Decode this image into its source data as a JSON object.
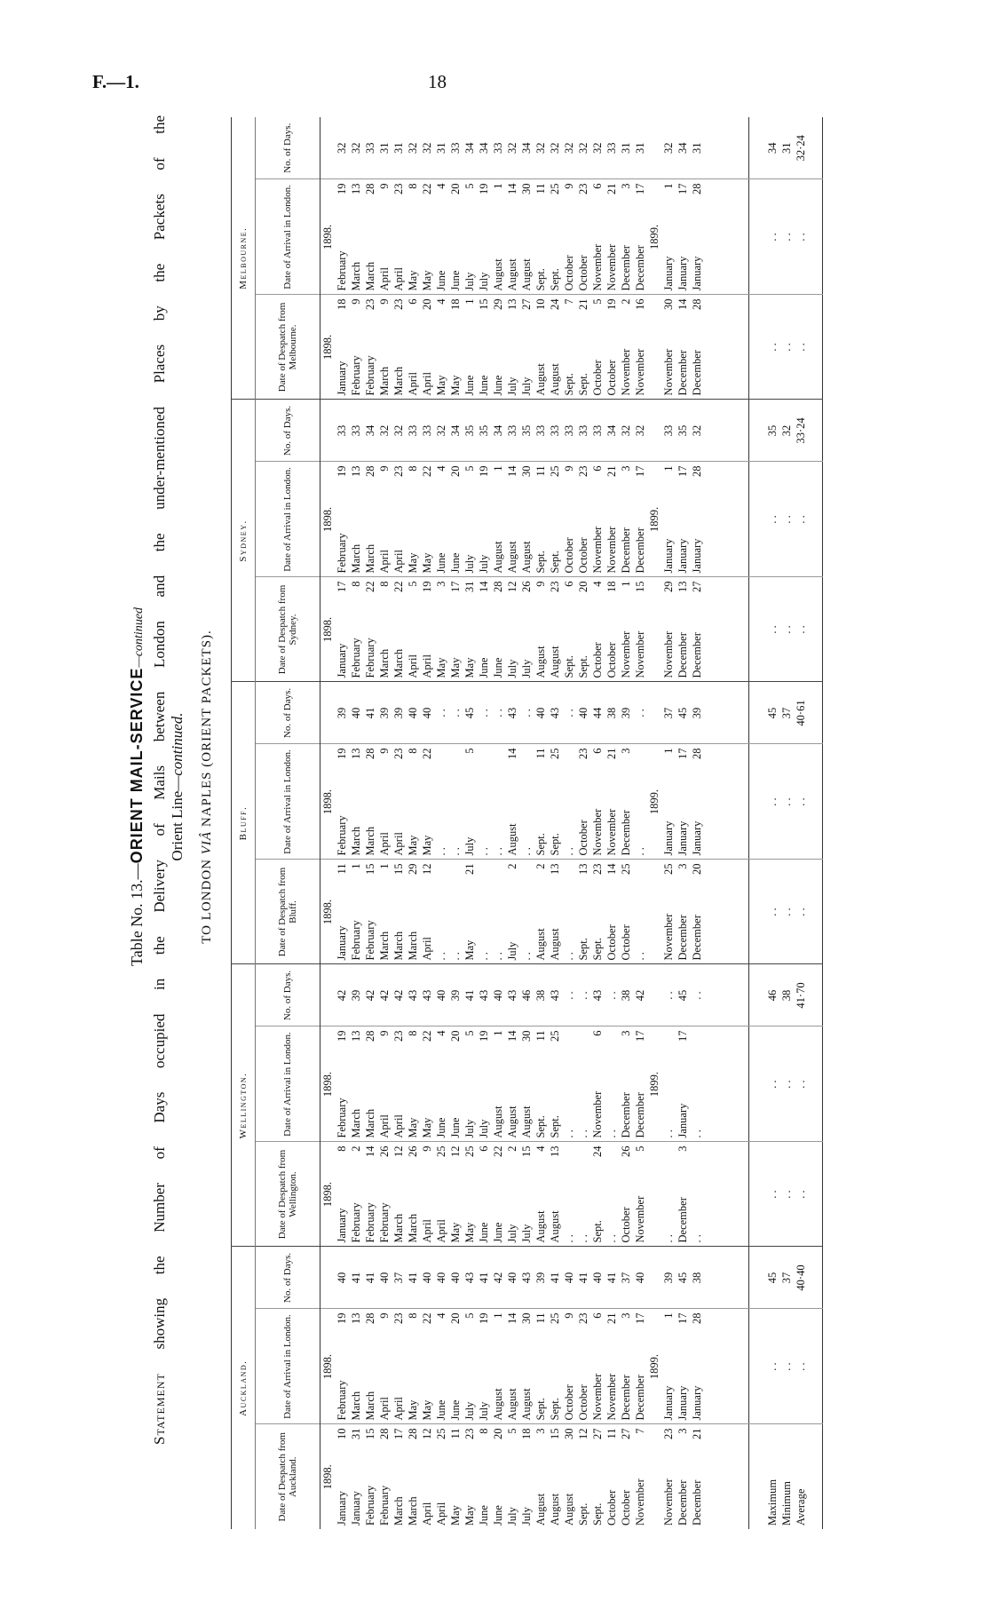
{
  "page": {
    "id": "F.—1.",
    "number": "18"
  },
  "title": {
    "prefix": "Table No. 13.—",
    "bold": "ORIENT MAIL-SERVICE",
    "suffix": "—continued"
  },
  "statement": {
    "lead": "Statement",
    "line1": "showing the Number of Days occupied in the Delivery of Mails between London and the under-mentioned Places by the Packets of the",
    "line2": "Orient Line—",
    "line2_italic": "continued."
  },
  "subtitle": {
    "prefix": "TO LONDON ",
    "italic": "VIÂ",
    "suffix": " NAPLES (ORIENT PACKETS)."
  },
  "table": {
    "summary_labels": [
      "Maximum",
      "Minimum",
      "Average"
    ],
    "dots": ". .",
    "sections": [
      {
        "name": "Auckland.",
        "headers": [
          "Date of Despatch from Auckland.",
          "Date of Arrival in London.",
          "No. of Days."
        ],
        "despatch_year": "1898.",
        "arrival_year": "1898.",
        "arrival_year_next": "1899.",
        "rows_1898": [
          [
            "January",
            "10",
            "February",
            "19",
            "40"
          ],
          [
            "January",
            "31",
            "March",
            "13",
            "41"
          ],
          [
            "February",
            "15",
            "March",
            "28",
            "41"
          ],
          [
            "February",
            "28",
            "April",
            "9",
            "40"
          ],
          [
            "March",
            "17",
            "April",
            "23",
            "37"
          ],
          [
            "March",
            "28",
            "May",
            "8",
            "41"
          ],
          [
            "April",
            "12",
            "May",
            "22",
            "40"
          ],
          [
            "April",
            "25",
            "June",
            "4",
            "40"
          ],
          [
            "May",
            "11",
            "June",
            "20",
            "40"
          ],
          [
            "May",
            "23",
            "July",
            "5",
            "43"
          ],
          [
            "June",
            "8",
            "July",
            "19",
            "41"
          ],
          [
            "June",
            "20",
            "August",
            "1",
            "42"
          ],
          [
            "July",
            "5",
            "August",
            "14",
            "40"
          ],
          [
            "July",
            "18",
            "August",
            "30",
            "43"
          ],
          [
            "August",
            "3",
            "Sept.",
            "11",
            "39"
          ],
          [
            "August",
            "15",
            "Sept.",
            "25",
            "41"
          ],
          [
            "August",
            "30",
            "October",
            "9",
            "40"
          ],
          [
            "Sept.",
            "12",
            "October",
            "23",
            "41"
          ],
          [
            "Sept.",
            "27",
            "November",
            "6",
            "40"
          ],
          [
            "October",
            "11",
            "November",
            "21",
            "41"
          ],
          [
            "October",
            "27",
            "December",
            "3",
            "37"
          ],
          [
            "November",
            "7",
            "December",
            "17",
            "40"
          ]
        ],
        "rows_1899": [
          [
            "November",
            "23",
            "January",
            "1",
            "39"
          ],
          [
            "December",
            "3",
            "January",
            "17",
            "45"
          ],
          [
            "December",
            "21",
            "January",
            "28",
            "38"
          ]
        ],
        "summary": [
          "45",
          "37",
          "40·40"
        ]
      },
      {
        "name": "Wellington.",
        "headers": [
          "Date of Despatch from Wellington.",
          "Date of Arrival in London.",
          "No. of Days."
        ],
        "despatch_year": "1898.",
        "arrival_year": "1898.",
        "arrival_year_next": "1899.",
        "rows_1898": [
          [
            "January",
            "8",
            "February",
            "19",
            "42"
          ],
          [
            "February",
            "2",
            "March",
            "13",
            "39"
          ],
          [
            "February",
            "14",
            "March",
            "28",
            "42"
          ],
          [
            "February",
            "26",
            "April",
            "9",
            "42"
          ],
          [
            "March",
            "12",
            "April",
            "23",
            "42"
          ],
          [
            "March",
            "26",
            "May",
            "8",
            "43"
          ],
          [
            "April",
            "9",
            "May",
            "22",
            "43"
          ],
          [
            "April",
            "25",
            "June",
            "4",
            "40"
          ],
          [
            "May",
            "12",
            "June",
            "20",
            "39"
          ],
          [
            "May",
            "25",
            "July",
            "5",
            "41"
          ],
          [
            "June",
            "6",
            "July",
            "19",
            "43"
          ],
          [
            "June",
            "22",
            "August",
            "1",
            "40"
          ],
          [
            "July",
            "2",
            "August",
            "14",
            "43"
          ],
          [
            "July",
            "15",
            "August",
            "30",
            "46"
          ],
          [
            "August",
            "4",
            "Sept.",
            "11",
            "38"
          ],
          [
            "August",
            "13",
            "Sept.",
            "25",
            "43"
          ],
          [
            ". .",
            "",
            ". .",
            "",
            ". ."
          ],
          [
            ". .",
            "",
            ". .",
            "",
            ". ."
          ],
          [
            "Sept.",
            "24",
            "November",
            "6",
            "43"
          ],
          [
            ". .",
            "",
            ". .",
            "",
            ". ."
          ],
          [
            "October",
            "26",
            "December",
            "3",
            "38"
          ],
          [
            "November",
            "5",
            "December",
            "17",
            "42"
          ]
        ],
        "rows_1899": [
          [
            ". .",
            "",
            ". .",
            "",
            ". ."
          ],
          [
            "December",
            "3",
            "January",
            "17",
            "45"
          ],
          [
            ". .",
            "",
            ". .",
            "",
            ". ."
          ]
        ],
        "summary": [
          "46",
          "38",
          "41·70"
        ]
      },
      {
        "name": "Bluff.",
        "headers": [
          "Date of Despatch from Bluff.",
          "Date of Arrival in London.",
          "No. of Days."
        ],
        "despatch_year": "1898.",
        "arrival_year": "1898.",
        "arrival_year_next": "1899.",
        "rows_1898": [
          [
            "January",
            "11",
            "February",
            "19",
            "39"
          ],
          [
            "February",
            "1",
            "March",
            "13",
            "40"
          ],
          [
            "February",
            "15",
            "March",
            "28",
            "41"
          ],
          [
            "March",
            "1",
            "April",
            "9",
            "39"
          ],
          [
            "March",
            "15",
            "April",
            "23",
            "39"
          ],
          [
            "March",
            "29",
            "May",
            "8",
            "40"
          ],
          [
            "April",
            "12",
            "May",
            "22",
            "40"
          ],
          [
            ". .",
            "",
            ". .",
            "",
            ". ."
          ],
          [
            ". .",
            "",
            ". .",
            "",
            ". ."
          ],
          [
            "May",
            "21",
            "July",
            "5",
            "45"
          ],
          [
            ". .",
            "",
            ". .",
            "",
            ". ."
          ],
          [
            ". .",
            "",
            ". .",
            "",
            ". ."
          ],
          [
            "July",
            "2",
            "August",
            "14",
            "43"
          ],
          [
            ". .",
            "",
            ". .",
            "",
            ". ."
          ],
          [
            "August",
            "2",
            "Sept.",
            "11",
            "40"
          ],
          [
            "August",
            "13",
            "Sept.",
            "25",
            "43"
          ],
          [
            ". .",
            "",
            ". .",
            "",
            ". ."
          ],
          [
            "Sept.",
            "13",
            "October",
            "23",
            "40"
          ],
          [
            "Sept.",
            "23",
            "November",
            "6",
            "44"
          ],
          [
            "October",
            "14",
            "November",
            "21",
            "38"
          ],
          [
            "October",
            "25",
            "December",
            "3",
            "39"
          ],
          [
            ". .",
            "",
            ". .",
            "",
            ". ."
          ]
        ],
        "rows_1899": [
          [
            "November",
            "25",
            "January",
            "1",
            "37"
          ],
          [
            "December",
            "3",
            "January",
            "17",
            "45"
          ],
          [
            "December",
            "20",
            "January",
            "28",
            "39"
          ]
        ],
        "summary": [
          "45",
          "37",
          "40·61"
        ]
      },
      {
        "name": "Sydney.",
        "headers": [
          "Date of Despatch from Sydney.",
          "Date of Arrival in London.",
          "No. of Days."
        ],
        "despatch_year": "1898.",
        "arrival_year": "1898.",
        "arrival_year_next": "1899.",
        "rows_1898": [
          [
            "January",
            "17",
            "February",
            "19",
            "33"
          ],
          [
            "February",
            "8",
            "March",
            "13",
            "33"
          ],
          [
            "February",
            "22",
            "March",
            "28",
            "34"
          ],
          [
            "March",
            "8",
            "April",
            "9",
            "32"
          ],
          [
            "March",
            "22",
            "April",
            "23",
            "32"
          ],
          [
            "April",
            "5",
            "May",
            "8",
            "33"
          ],
          [
            "April",
            "19",
            "May",
            "22",
            "33"
          ],
          [
            "May",
            "3",
            "June",
            "4",
            "32"
          ],
          [
            "May",
            "17",
            "June",
            "20",
            "34"
          ],
          [
            "May",
            "31",
            "July",
            "5",
            "35"
          ],
          [
            "June",
            "14",
            "July",
            "19",
            "35"
          ],
          [
            "June",
            "28",
            "August",
            "1",
            "34"
          ],
          [
            "July",
            "12",
            "August",
            "14",
            "33"
          ],
          [
            "July",
            "26",
            "August",
            "30",
            "35"
          ],
          [
            "August",
            "9",
            "Sept.",
            "11",
            "33"
          ],
          [
            "August",
            "23",
            "Sept.",
            "25",
            "33"
          ],
          [
            "Sept.",
            "6",
            "October",
            "9",
            "33"
          ],
          [
            "Sept.",
            "20",
            "October",
            "23",
            "33"
          ],
          [
            "October",
            "4",
            "November",
            "6",
            "33"
          ],
          [
            "October",
            "18",
            "November",
            "21",
            "34"
          ],
          [
            "November",
            "1",
            "December",
            "3",
            "32"
          ],
          [
            "November",
            "15",
            "December",
            "17",
            "32"
          ]
        ],
        "rows_1899": [
          [
            "November",
            "29",
            "January",
            "1",
            "33"
          ],
          [
            "December",
            "13",
            "January",
            "17",
            "35"
          ],
          [
            "December",
            "27",
            "January",
            "28",
            "32"
          ]
        ],
        "summary": [
          "35",
          "32",
          "33·24"
        ]
      },
      {
        "name": "Melbourne.",
        "headers": [
          "Date of Despatch from Melbourne.",
          "Date of Arrival in London.",
          "No. of Days."
        ],
        "despatch_year": "1898.",
        "arrival_year": "1898.",
        "arrival_year_next": "1899.",
        "rows_1898": [
          [
            "January",
            "18",
            "February",
            "19",
            "32"
          ],
          [
            "February",
            "9",
            "March",
            "13",
            "32"
          ],
          [
            "February",
            "23",
            "March",
            "28",
            "33"
          ],
          [
            "March",
            "9",
            "April",
            "9",
            "31"
          ],
          [
            "March",
            "23",
            "April",
            "23",
            "31"
          ],
          [
            "April",
            "6",
            "May",
            "8",
            "32"
          ],
          [
            "April",
            "20",
            "May",
            "22",
            "32"
          ],
          [
            "May",
            "4",
            "June",
            "4",
            "31"
          ],
          [
            "May",
            "18",
            "June",
            "20",
            "33"
          ],
          [
            "June",
            "1",
            "July",
            "5",
            "34"
          ],
          [
            "June",
            "15",
            "July",
            "19",
            "34"
          ],
          [
            "June",
            "29",
            "August",
            "1",
            "33"
          ],
          [
            "July",
            "13",
            "August",
            "14",
            "32"
          ],
          [
            "July",
            "27",
            "August",
            "30",
            "34"
          ],
          [
            "August",
            "10",
            "Sept.",
            "11",
            "32"
          ],
          [
            "August",
            "24",
            "Sept.",
            "25",
            "32"
          ],
          [
            "Sept.",
            "7",
            "October",
            "9",
            "32"
          ],
          [
            "Sept.",
            "21",
            "October",
            "23",
            "32"
          ],
          [
            "October",
            "5",
            "November",
            "6",
            "32"
          ],
          [
            "October",
            "19",
            "November",
            "21",
            "33"
          ],
          [
            "November",
            "2",
            "December",
            "3",
            "31"
          ],
          [
            "November",
            "16",
            "December",
            "17",
            "31"
          ]
        ],
        "rows_1899": [
          [
            "November",
            "30",
            "January",
            "1",
            "32"
          ],
          [
            "December",
            "14",
            "January",
            "17",
            "34"
          ],
          [
            "December",
            "28",
            "January",
            "28",
            "31"
          ]
        ],
        "summary": [
          "34",
          "31",
          "32·24"
        ]
      }
    ]
  }
}
